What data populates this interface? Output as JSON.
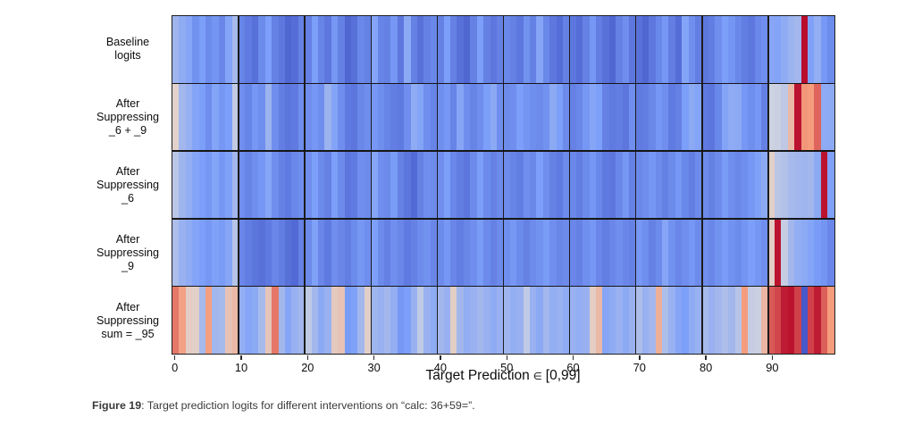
{
  "figure": {
    "caption_label": "Figure 19",
    "caption_text": ": Target prediction logits for different interventions on “calc: 36+59=”."
  },
  "chart_data": {
    "type": "heatmap",
    "colormap": "coolwarm",
    "value_range": [
      -1,
      1
    ],
    "x_range": [
      0,
      99
    ],
    "n_cols": 100,
    "block_size": 10,
    "xlabel_pre": "Target Prediction",
    "xlabel_symbol": "∈",
    "xlabel_post": "[0,99]",
    "xticks": [
      0,
      10,
      20,
      30,
      40,
      50,
      60,
      70,
      80,
      90
    ],
    "colormap_anchors": [
      [
        59,
        76,
        192
      ],
      [
        124,
        159,
        249
      ],
      [
        221,
        220,
        219
      ],
      [
        245,
        156,
        125
      ],
      [
        180,
        4,
        38
      ]
    ],
    "rows": [
      {
        "label_lines": [
          "Baseline",
          "logits"
        ],
        "values": [
          -0.32,
          -0.4,
          -0.45,
          -0.58,
          -0.5,
          -0.62,
          -0.56,
          -0.65,
          -0.46,
          -0.28,
          -0.66,
          -0.72,
          -0.78,
          -0.62,
          -0.5,
          -0.68,
          -0.74,
          -0.84,
          -0.8,
          -0.68,
          -0.68,
          -0.5,
          -0.66,
          -0.74,
          -0.55,
          -0.68,
          -0.84,
          -0.78,
          -0.64,
          -0.68,
          -0.46,
          -0.66,
          -0.68,
          -0.55,
          -0.74,
          -0.42,
          -0.68,
          -0.78,
          -0.68,
          -0.64,
          -0.68,
          -0.5,
          -0.68,
          -0.78,
          -0.84,
          -0.68,
          -0.5,
          -0.68,
          -0.74,
          -0.68,
          -0.64,
          -0.68,
          -0.74,
          -0.58,
          -0.68,
          -0.45,
          -0.64,
          -0.74,
          -0.8,
          -0.68,
          -0.74,
          -0.8,
          -0.68,
          -0.55,
          -0.7,
          -0.78,
          -0.84,
          -0.68,
          -0.6,
          -0.74,
          -0.78,
          -0.84,
          -0.74,
          -0.64,
          -0.55,
          -0.7,
          -0.8,
          -0.46,
          -0.6,
          -0.7,
          -0.74,
          -0.7,
          -0.6,
          -0.5,
          -0.56,
          -0.64,
          -0.7,
          -0.74,
          -0.64,
          -0.6,
          -0.44,
          -0.46,
          -0.4,
          -0.34,
          -0.3,
          0.97,
          -0.48,
          -0.38,
          -0.54,
          -0.62
        ]
      },
      {
        "label_lines": [
          "After",
          "Suppressing",
          "_6 + _9"
        ],
        "values": [
          0.08,
          -0.3,
          -0.36,
          -0.46,
          -0.5,
          -0.6,
          -0.46,
          -0.55,
          -0.5,
          -0.14,
          -0.6,
          -0.66,
          -0.55,
          -0.6,
          -0.34,
          -0.6,
          -0.7,
          -0.75,
          -0.72,
          -0.6,
          -0.6,
          -0.55,
          -0.6,
          -0.34,
          -0.46,
          -0.6,
          -0.72,
          -0.75,
          -0.64,
          -0.6,
          -0.55,
          -0.6,
          -0.66,
          -0.7,
          -0.72,
          -0.6,
          -0.4,
          -0.46,
          -0.6,
          -0.66,
          -0.6,
          -0.55,
          -0.66,
          -0.45,
          -0.6,
          -0.66,
          -0.6,
          -0.5,
          -0.42,
          -0.6,
          -0.62,
          -0.6,
          -0.5,
          -0.56,
          -0.6,
          -0.62,
          -0.58,
          -0.42,
          -0.5,
          -0.62,
          -0.68,
          -0.64,
          -0.55,
          -0.45,
          -0.5,
          -0.68,
          -0.72,
          -0.7,
          -0.75,
          -0.6,
          -0.72,
          -0.7,
          -0.64,
          -0.55,
          -0.6,
          -0.72,
          -0.68,
          -0.5,
          -0.42,
          -0.46,
          -0.72,
          -0.75,
          -0.64,
          -0.46,
          -0.4,
          -0.42,
          -0.55,
          -0.6,
          -0.55,
          -0.68,
          -0.08,
          -0.1,
          -0.16,
          0.28,
          0.95,
          0.52,
          0.5,
          0.68,
          -0.4,
          -0.42
        ]
      },
      {
        "label_lines": [
          "After",
          "Suppressing",
          "_6"
        ],
        "values": [
          -0.18,
          -0.32,
          -0.38,
          -0.46,
          -0.5,
          -0.55,
          -0.46,
          -0.55,
          -0.48,
          -0.3,
          -0.6,
          -0.66,
          -0.6,
          -0.55,
          -0.45,
          -0.6,
          -0.68,
          -0.72,
          -0.64,
          -0.6,
          -0.6,
          -0.5,
          -0.62,
          -0.68,
          -0.5,
          -0.62,
          -0.75,
          -0.72,
          -0.6,
          -0.62,
          -0.45,
          -0.6,
          -0.62,
          -0.52,
          -0.68,
          -0.75,
          -0.82,
          -0.68,
          -0.6,
          -0.62,
          -0.6,
          -0.5,
          -0.64,
          -0.7,
          -0.75,
          -0.62,
          -0.5,
          -0.62,
          -0.68,
          -0.62,
          -0.62,
          -0.66,
          -0.7,
          -0.6,
          -0.64,
          -0.5,
          -0.6,
          -0.68,
          -0.72,
          -0.62,
          -0.64,
          -0.7,
          -0.62,
          -0.55,
          -0.64,
          -0.72,
          -0.75,
          -0.64,
          -0.55,
          -0.68,
          -0.64,
          -0.6,
          -0.55,
          -0.62,
          -0.68,
          -0.62,
          -0.55,
          -0.64,
          -0.7,
          -0.62,
          -0.62,
          -0.68,
          -0.62,
          -0.52,
          -0.6,
          -0.64,
          -0.6,
          -0.55,
          -0.48,
          -0.42,
          0.1,
          -0.18,
          -0.22,
          -0.28,
          -0.3,
          -0.32,
          -0.3,
          -0.42,
          0.95,
          -0.48
        ]
      },
      {
        "label_lines": [
          "After",
          "Suppressing",
          "_9"
        ],
        "values": [
          -0.25,
          -0.35,
          -0.4,
          -0.46,
          -0.5,
          -0.55,
          -0.48,
          -0.52,
          -0.45,
          -0.2,
          -0.65,
          -0.7,
          -0.75,
          -0.78,
          -0.72,
          -0.65,
          -0.7,
          -0.78,
          -0.82,
          -0.68,
          -0.62,
          -0.48,
          -0.65,
          -0.72,
          -0.6,
          -0.65,
          -0.7,
          -0.62,
          -0.55,
          -0.6,
          -0.5,
          -0.62,
          -0.68,
          -0.6,
          -0.65,
          -0.72,
          -0.68,
          -0.62,
          -0.58,
          -0.65,
          -0.62,
          -0.55,
          -0.65,
          -0.7,
          -0.65,
          -0.6,
          -0.52,
          -0.62,
          -0.68,
          -0.62,
          -0.6,
          -0.55,
          -0.62,
          -0.68,
          -0.62,
          -0.58,
          -0.52,
          -0.6,
          -0.65,
          -0.62,
          -0.65,
          -0.68,
          -0.6,
          -0.55,
          -0.65,
          -0.7,
          -0.65,
          -0.6,
          -0.65,
          -0.68,
          -0.55,
          -0.6,
          -0.68,
          -0.62,
          -0.45,
          -0.58,
          -0.65,
          -0.6,
          -0.55,
          -0.62,
          -0.6,
          -0.65,
          -0.58,
          -0.52,
          -0.58,
          -0.62,
          -0.56,
          -0.5,
          -0.55,
          -0.6,
          0.12,
          0.95,
          -0.12,
          -0.3,
          -0.38,
          -0.42,
          -0.46,
          -0.52,
          -0.56,
          -0.65
        ]
      },
      {
        "label_lines": [
          "After",
          "Suppressing",
          "sum = _95"
        ],
        "values": [
          0.62,
          0.45,
          0.12,
          0.1,
          -0.28,
          0.48,
          -0.3,
          -0.28,
          0.2,
          0.28,
          -0.38,
          -0.45,
          -0.42,
          -0.28,
          0.18,
          0.62,
          -0.3,
          -0.45,
          -0.35,
          -0.3,
          -0.15,
          -0.3,
          -0.42,
          -0.35,
          0.15,
          0.2,
          -0.52,
          -0.48,
          -0.3,
          0.1,
          -0.32,
          -0.35,
          -0.3,
          -0.38,
          -0.55,
          -0.5,
          -0.35,
          -0.15,
          -0.35,
          -0.4,
          -0.3,
          -0.35,
          0.12,
          -0.3,
          -0.38,
          -0.35,
          -0.3,
          -0.35,
          -0.4,
          -0.35,
          -0.32,
          -0.38,
          -0.35,
          -0.15,
          -0.35,
          -0.42,
          -0.3,
          -0.38,
          -0.35,
          -0.4,
          -0.35,
          -0.38,
          -0.35,
          0.12,
          0.28,
          -0.45,
          -0.4,
          -0.35,
          -0.42,
          -0.35,
          -0.25,
          -0.35,
          -0.3,
          0.35,
          -0.25,
          -0.35,
          -0.45,
          -0.5,
          -0.4,
          -0.35,
          -0.28,
          -0.35,
          -0.3,
          -0.25,
          -0.3,
          -0.2,
          0.5,
          -0.12,
          -0.1,
          0.3,
          0.72,
          0.78,
          0.92,
          0.95,
          0.8,
          -0.92,
          0.8,
          0.92,
          0.7,
          0.5
        ]
      }
    ]
  }
}
